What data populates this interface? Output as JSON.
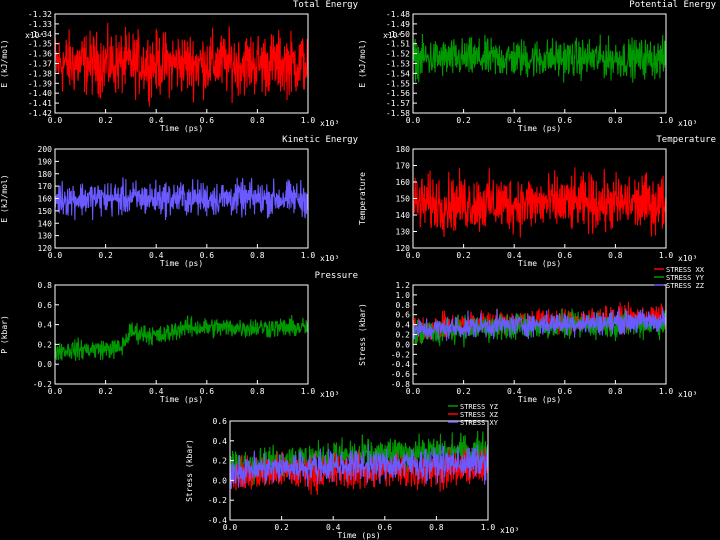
{
  "colors": {
    "background": "#000000",
    "red": "#ff0000",
    "green": "#009a00",
    "blue": "#6a5aff",
    "axis": "#ffffff"
  },
  "chart_data": [
    {
      "type": "area",
      "title": "Total Energy",
      "xlabel": "Time (ps)",
      "ylabel": "E (kJ/mol)",
      "x_multiplier": "x10³",
      "y_multiplier": "x10⁴",
      "xlim": [
        0.0,
        1.0
      ],
      "ylim": [
        -1.42,
        -1.32
      ],
      "x_ticks": [
        "0.0",
        "0.2",
        "0.4",
        "0.6",
        "0.8",
        "1.0"
      ],
      "y_ticks": [
        "-1.32",
        "-1.33",
        "-1.34",
        "-1.35",
        "-1.36",
        "-1.37",
        "-1.38",
        "-1.39",
        "-1.40",
        "-1.41",
        "-1.42"
      ],
      "series": [
        {
          "color": "#ff0000",
          "x": [
            0.0,
            1.0
          ],
          "mean": [
            -1.37,
            -1.37
          ],
          "band": [
            0.04,
            0.04
          ]
        }
      ]
    },
    {
      "type": "area",
      "title": "Potential Energy",
      "xlabel": "Time (ps)",
      "ylabel": "E (kJ/mol)",
      "x_multiplier": "x10³",
      "y_multiplier": "x10⁴",
      "xlim": [
        0.0,
        1.0
      ],
      "ylim": [
        -1.58,
        -1.48
      ],
      "x_ticks": [
        "0.0",
        "0.2",
        "0.4",
        "0.6",
        "0.8",
        "1.0"
      ],
      "y_ticks": [
        "-1.48",
        "-1.49",
        "-1.50",
        "-1.51",
        "-1.52",
        "-1.53",
        "-1.54",
        "-1.55",
        "-1.56",
        "-1.57",
        "-1.58"
      ],
      "series": [
        {
          "color": "#009a00",
          "x": [
            0.0,
            1.0
          ],
          "mean": [
            -1.525,
            -1.525
          ],
          "band": [
            0.025,
            0.025
          ]
        }
      ]
    },
    {
      "type": "area",
      "title": "Kinetic Energy",
      "xlabel": "Time (ps)",
      "ylabel": "E (kJ/mol)",
      "x_multiplier": "x10³",
      "xlim": [
        0.0,
        1.0
      ],
      "ylim": [
        120,
        200
      ],
      "x_ticks": [
        "0.0",
        "0.2",
        "0.4",
        "0.6",
        "0.8",
        "1.0"
      ],
      "y_ticks": [
        "200",
        "190",
        "180",
        "170",
        "160",
        "150",
        "140",
        "130",
        "120"
      ],
      "series": [
        {
          "color": "#6a5aff",
          "x": [
            0.0,
            1.0
          ],
          "mean": [
            160,
            160
          ],
          "band": [
            18,
            18
          ]
        }
      ]
    },
    {
      "type": "area",
      "title": "Temperature",
      "xlabel": "Time (ps)",
      "ylabel": "Temperature",
      "x_multiplier": "x10³",
      "xlim": [
        0.0,
        1.0
      ],
      "ylim": [
        120,
        180
      ],
      "x_ticks": [
        "0.0",
        "0.2",
        "0.4",
        "0.6",
        "0.8",
        "1.0"
      ],
      "y_ticks": [
        "180",
        "170",
        "160",
        "150",
        "140",
        "130",
        "120"
      ],
      "series": [
        {
          "color": "#ff0000",
          "x": [
            0.0,
            1.0
          ],
          "mean": [
            147,
            147
          ],
          "band": [
            22,
            22
          ]
        }
      ]
    },
    {
      "type": "area",
      "title": "Pressure",
      "xlabel": "Time (ps)",
      "ylabel": "P (kbar)",
      "x_multiplier": "x10³",
      "xlim": [
        0.0,
        1.0
      ],
      "ylim": [
        -0.2,
        0.8
      ],
      "x_ticks": [
        "0.0",
        "0.2",
        "0.4",
        "0.6",
        "0.8",
        "1.0"
      ],
      "y_ticks": [
        "0.8",
        "0.6",
        "0.4",
        "0.2",
        "0.0",
        "-0.2"
      ],
      "series": [
        {
          "color": "#009a00",
          "x": [
            0.0,
            0.26,
            0.3,
            0.42,
            0.5,
            1.0
          ],
          "mean": [
            0.14,
            0.16,
            0.33,
            0.28,
            0.37,
            0.37
          ],
          "band": [
            0.13,
            0.13,
            0.13,
            0.13,
            0.13,
            0.13
          ]
        }
      ]
    },
    {
      "type": "area",
      "title": "",
      "xlabel": "Time (ps)",
      "ylabel": "Stress (kbar)",
      "x_multiplier": "x10³",
      "xlim": [
        0.0,
        1.0
      ],
      "ylim": [
        -0.8,
        1.2
      ],
      "x_ticks": [
        "0.0",
        "0.2",
        "0.4",
        "0.6",
        "0.8",
        "1.0"
      ],
      "y_ticks": [
        "1.2",
        "1.0",
        "0.8",
        "0.6",
        "0.4",
        "0.2",
        "0.0",
        "-0.2",
        "-0.4",
        "-0.6",
        "-0.8"
      ],
      "legend": "top-right",
      "series": [
        {
          "name": "STRESS XX",
          "color": "#ff0000",
          "x": [
            0.0,
            0.3,
            1.0
          ],
          "mean": [
            0.3,
            0.45,
            0.55
          ],
          "band": [
            0.32,
            0.32,
            0.32
          ]
        },
        {
          "name": "STRESS YY",
          "color": "#009a00",
          "x": [
            0.0,
            0.3,
            1.0
          ],
          "mean": [
            0.2,
            0.35,
            0.42
          ],
          "band": [
            0.34,
            0.34,
            0.34
          ]
        },
        {
          "name": "STRESS ZZ",
          "color": "#6a5aff",
          "x": [
            0.0,
            0.3,
            1.0
          ],
          "mean": [
            0.28,
            0.38,
            0.48
          ],
          "band": [
            0.3,
            0.3,
            0.3
          ]
        }
      ]
    },
    {
      "type": "area",
      "title": "",
      "xlabel": "Time (ps)",
      "ylabel": "Stress (kbar)",
      "x_multiplier": "x10³",
      "xlim": [
        0.0,
        1.0
      ],
      "ylim": [
        -0.6,
        0.6
      ],
      "x_ticks": [
        "0.0",
        "0.2",
        "0.4",
        "0.6",
        "0.8",
        "1.0"
      ],
      "y_ticks": [
        "0.6",
        "0.4",
        "0.2",
        "0.0",
        "-0.2",
        "-0.4"
      ],
      "legend": "top-right",
      "series": [
        {
          "name": "STRESS YZ",
          "color": "#009a00",
          "x": [
            0.0,
            0.3,
            1.0
          ],
          "mean": [
            0.05,
            0.15,
            0.25
          ],
          "band": [
            0.25,
            0.25,
            0.25
          ]
        },
        {
          "name": "STRESS XZ",
          "color": "#ff0000",
          "x": [
            0.0,
            0.3,
            1.0
          ],
          "mean": [
            -0.05,
            -0.02,
            0.02
          ],
          "band": [
            0.28,
            0.28,
            0.28
          ]
        },
        {
          "name": "STRESS XY",
          "color": "#6a5aff",
          "x": [
            0.0,
            0.3,
            1.0
          ],
          "mean": [
            0.0,
            0.05,
            0.1
          ],
          "band": [
            0.25,
            0.25,
            0.25
          ]
        }
      ]
    }
  ]
}
